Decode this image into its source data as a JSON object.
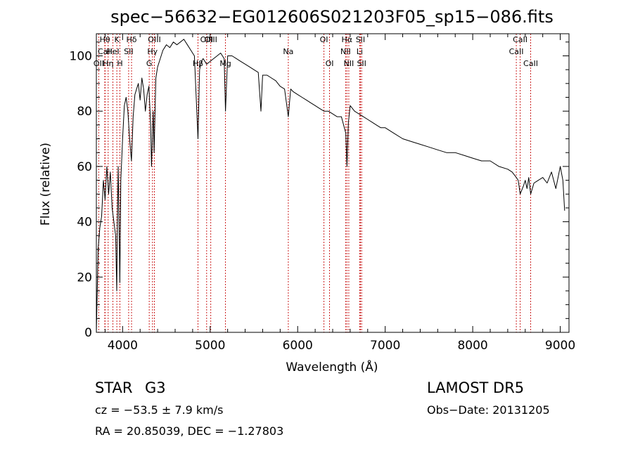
{
  "chart_data": {
    "type": "line",
    "title": "spec−56632−EG012606S021203F05_sp15−086.fits",
    "xlabel": "Wavelength (Å)",
    "ylabel": "Flux (relative)",
    "xlim": [
      3700,
      9100
    ],
    "ylim": [
      0,
      108
    ],
    "x_ticks": [
      4000,
      5000,
      6000,
      7000,
      8000,
      9000
    ],
    "y_ticks": [
      0,
      20,
      40,
      60,
      80,
      100
    ],
    "grid": false,
    "series": [
      {
        "x": [
          3700,
          3720,
          3740,
          3760,
          3780,
          3800,
          3820,
          3840,
          3860,
          3880,
          3900,
          3920,
          3933,
          3940,
          3950,
          3968,
          3980,
          4000,
          4020,
          4040,
          4060,
          4080,
          4101,
          4120,
          4140,
          4160,
          4180,
          4200,
          4220,
          4240,
          4260,
          4280,
          4300,
          4320,
          4330,
          4340,
          4350,
          4360,
          4380,
          4400,
          4420,
          4440,
          4460,
          4480,
          4500,
          4540,
          4580,
          4620,
          4660,
          4700,
          4740,
          4780,
          4820,
          4861,
          4880,
          4900,
          4920,
          4960,
          5000,
          5040,
          5080,
          5120,
          5160,
          5175,
          5200,
          5250,
          5300,
          5350,
          5400,
          5450,
          5500,
          5550,
          5580,
          5600,
          5650,
          5700,
          5750,
          5800,
          5850,
          5893,
          5920,
          5950,
          6000,
          6050,
          6100,
          6150,
          6200,
          6250,
          6300,
          6350,
          6400,
          6450,
          6500,
          6550,
          6563,
          6580,
          6600,
          6650,
          6700,
          6750,
          6800,
          6850,
          6900,
          6950,
          7000,
          7100,
          7200,
          7300,
          7400,
          7500,
          7600,
          7700,
          7800,
          7900,
          8000,
          8100,
          8200,
          8300,
          8400,
          8450,
          8498,
          8520,
          8542,
          8580,
          8600,
          8620,
          8640,
          8662,
          8700,
          8750,
          8800,
          8850,
          8900,
          8950,
          9000,
          9030,
          9050
        ],
        "y": [
          0,
          30,
          38,
          42,
          55,
          48,
          60,
          50,
          58,
          45,
          40,
          35,
          15,
          40,
          60,
          18,
          55,
          70,
          82,
          85,
          80,
          70,
          62,
          78,
          86,
          88,
          90,
          84,
          92,
          88,
          80,
          86,
          89,
          75,
          60,
          70,
          80,
          65,
          92,
          96,
          98,
          100,
          102,
          103,
          104,
          103,
          105,
          104,
          105,
          106,
          104,
          102,
          100,
          70,
          95,
          98,
          99,
          97,
          98,
          99,
          100,
          101,
          99,
          80,
          100,
          100,
          99,
          98,
          97,
          96,
          95,
          94,
          80,
          93,
          93,
          92,
          91,
          89,
          88,
          78,
          88,
          87,
          86,
          85,
          84,
          83,
          82,
          81,
          80,
          80,
          79,
          78,
          78,
          72,
          60,
          76,
          82,
          80,
          79,
          78,
          77,
          76,
          75,
          74,
          74,
          72,
          70,
          69,
          68,
          67,
          66,
          65,
          65,
          64,
          63,
          62,
          62,
          60,
          59,
          58,
          56,
          55,
          50,
          53,
          55,
          52,
          56,
          50,
          54,
          55,
          56,
          54,
          58,
          52,
          60,
          55,
          44
        ]
      }
    ],
    "spectral_lines": [
      {
        "label": "Hθ",
        "x": 3797,
        "row": 0
      },
      {
        "label": "CaII",
        "x": 3800,
        "row": 1
      },
      {
        "label": "OII",
        "x": 3727,
        "row": 2
      },
      {
        "label": "K",
        "x": 3934,
        "row": 0
      },
      {
        "label": "HeI",
        "x": 3889,
        "row": 1
      },
      {
        "label": "Hη",
        "x": 3835,
        "row": 2
      },
      {
        "label": "SII",
        "x": 4069,
        "row": 1
      },
      {
        "label": "H",
        "x": 3969,
        "row": 2
      },
      {
        "label": "Hδ",
        "x": 4102,
        "row": 0
      },
      {
        "label": "OIII",
        "x": 4363,
        "row": 0
      },
      {
        "label": "Hγ",
        "x": 4341,
        "row": 1
      },
      {
        "label": "G",
        "x": 4304,
        "row": 2
      },
      {
        "label": "OIII",
        "x": 4960,
        "row": 0
      },
      {
        "label": "Hβ",
        "x": 4861,
        "row": 2
      },
      {
        "label": "OIII",
        "x": 5007,
        "row": 0
      },
      {
        "label": "Mg",
        "x": 5175,
        "row": 2
      },
      {
        "label": "Na",
        "x": 5893,
        "row": 1
      },
      {
        "label": "OI",
        "x": 6300,
        "row": 0
      },
      {
        "label": "OI",
        "x": 6364,
        "row": 2
      },
      {
        "label": "Hα",
        "x": 6563,
        "row": 0
      },
      {
        "label": "NII",
        "x": 6548,
        "row": 1
      },
      {
        "label": "NII",
        "x": 6584,
        "row": 2
      },
      {
        "label": "SII",
        "x": 6717,
        "row": 0
      },
      {
        "label": "Li",
        "x": 6708,
        "row": 1
      },
      {
        "label": "SII",
        "x": 6731,
        "row": 2
      },
      {
        "label": "CaII",
        "x": 8542,
        "row": 0
      },
      {
        "label": "CaII",
        "x": 8498,
        "row": 1
      },
      {
        "label": "CaII",
        "x": 8662,
        "row": 2
      }
    ]
  },
  "info": {
    "object_class": "STAR",
    "subclass": "G3",
    "cz": "cz = −53.5 ± 7.9 km/s",
    "radec": "RA =  20.85039, DEC =  −1.27803",
    "survey": "LAMOST DR5",
    "obs_date": "Obs−Date: 20131205"
  },
  "colors": {
    "axis": "#000000",
    "spectrum": "#000000",
    "line_marker": "#cc2222"
  }
}
